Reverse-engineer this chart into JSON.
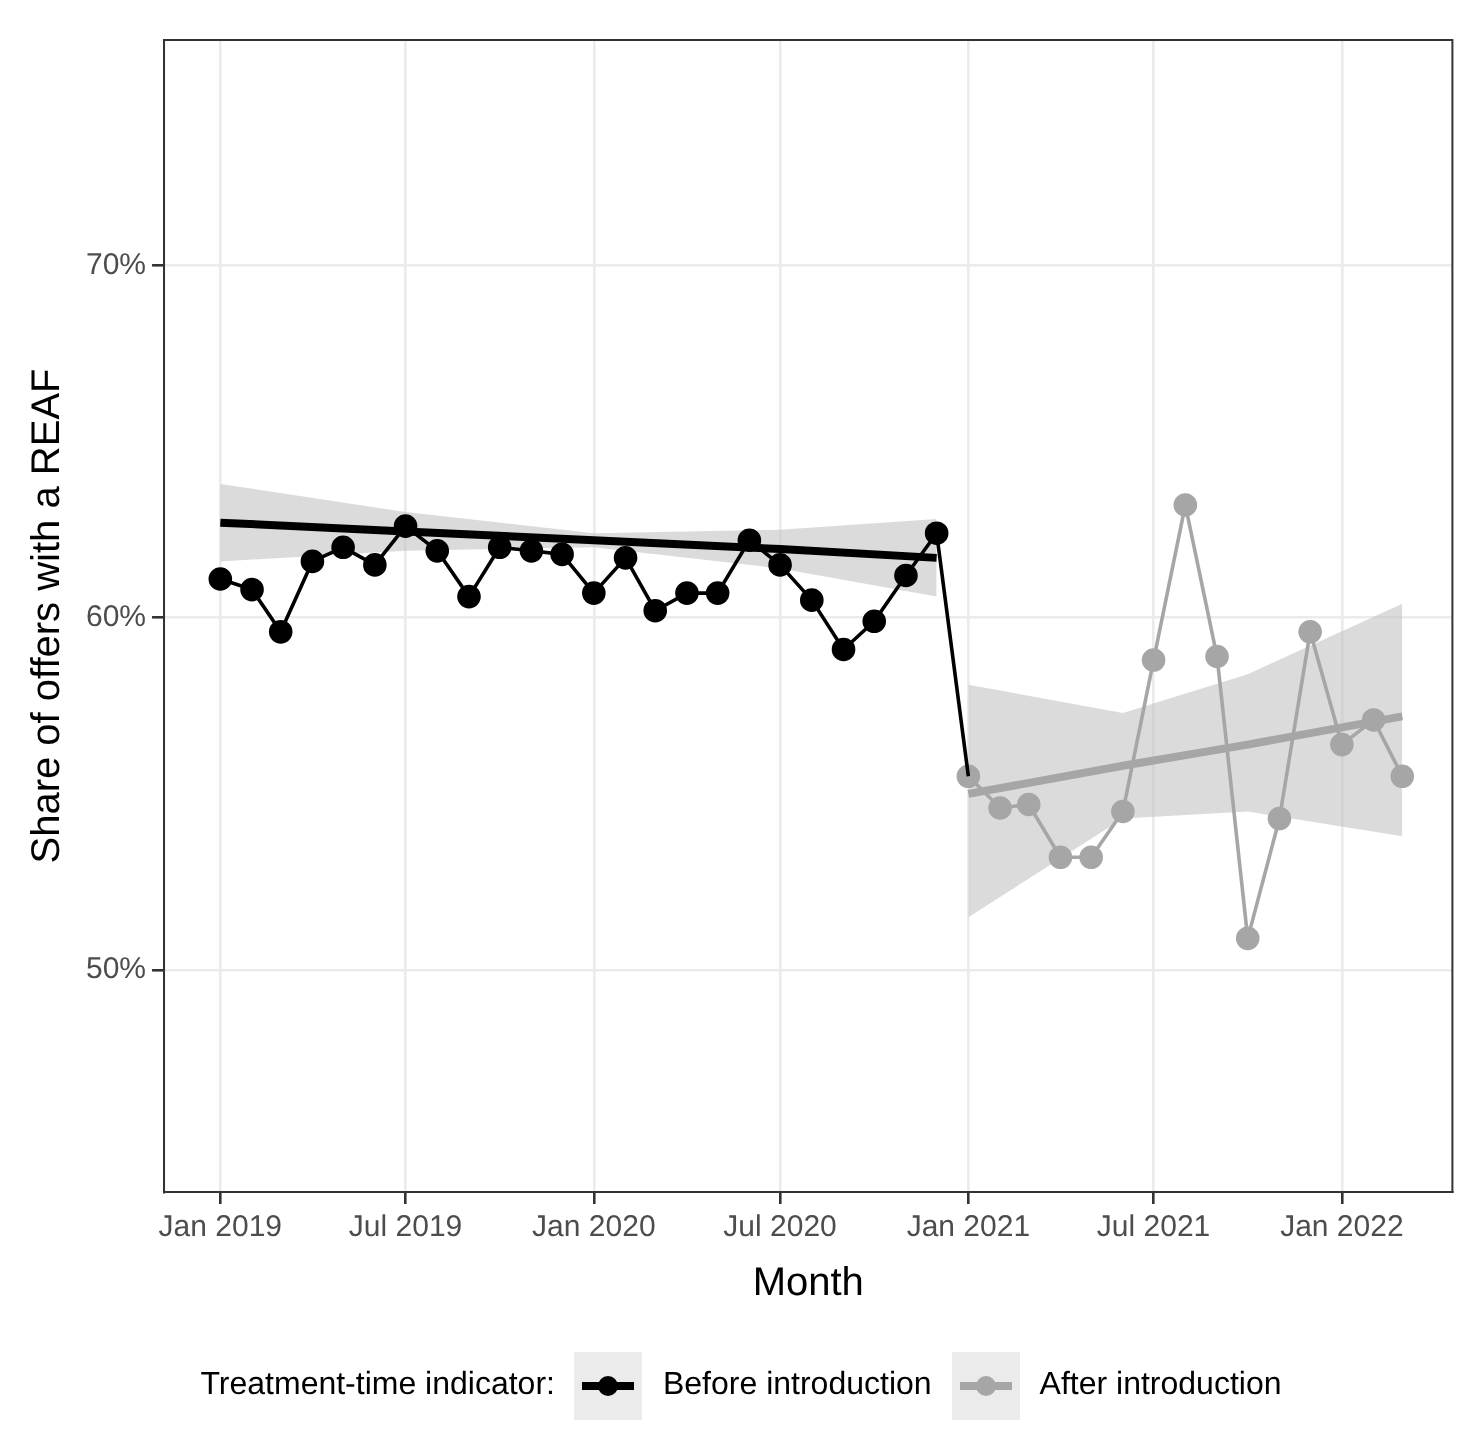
{
  "chart_data": {
    "type": "line",
    "xlabel": "Month",
    "ylabel": "Share of offers with a REAF",
    "legend_title": "Treatment-time indicator:",
    "legend": "bottom",
    "grid": true,
    "xlim": [
      "2018-11-07",
      "2022-04-19"
    ],
    "xticks": [
      {
        "value": "2019-01",
        "label": "Jan 2019"
      },
      {
        "value": "2019-07",
        "label": "Jul 2019"
      },
      {
        "value": "2020-01",
        "label": "Jan 2020"
      },
      {
        "value": "2020-07",
        "label": "Jul 2020"
      },
      {
        "value": "2021-01",
        "label": "Jan 2021"
      },
      {
        "value": "2021-07",
        "label": "Jul 2021"
      },
      {
        "value": "2022-01",
        "label": "Jan 2022"
      }
    ],
    "ylim": [
      43.7,
      76.4
    ],
    "yticks": [
      {
        "value": 50,
        "label": "50%"
      },
      {
        "value": 60,
        "label": "60%"
      },
      {
        "value": 70,
        "label": "70%"
      }
    ],
    "series": [
      {
        "name": "Before introduction",
        "color": "#000000",
        "marker": "circle",
        "x": [
          "2019-01",
          "2019-02",
          "2019-03",
          "2019-04",
          "2019-05",
          "2019-06",
          "2019-07",
          "2019-08",
          "2019-09",
          "2019-10",
          "2019-11",
          "2019-12",
          "2020-01",
          "2020-02",
          "2020-03",
          "2020-04",
          "2020-05",
          "2020-06",
          "2020-07",
          "2020-08",
          "2020-09",
          "2020-10",
          "2020-11",
          "2020-12",
          "2021-01"
        ],
        "values": [
          61.1,
          60.8,
          59.6,
          61.6,
          62.0,
          61.5,
          62.6,
          61.9,
          60.6,
          62.0,
          61.9,
          61.8,
          60.7,
          61.7,
          60.2,
          60.7,
          60.7,
          62.2,
          61.5,
          60.5,
          59.1,
          59.9,
          61.2,
          62.4,
          55.5
        ]
      },
      {
        "name": "After introduction",
        "color": "#a6a6a6",
        "marker": "circle",
        "x": [
          "2021-01",
          "2021-02",
          "2021-03",
          "2021-04",
          "2021-05",
          "2021-06",
          "2021-07",
          "2021-08",
          "2021-09",
          "2021-10",
          "2021-11",
          "2021-12",
          "2022-01",
          "2022-02",
          "2022-03"
        ],
        "values": [
          55.5,
          54.6,
          54.7,
          53.2,
          53.2,
          54.5,
          58.8,
          63.2,
          58.9,
          50.9,
          54.3,
          59.6,
          56.4,
          57.1,
          55.5
        ]
      },
      {
        "type": "line",
        "color": "#000000",
        "marker": "none",
        "x": [
          "2019-01",
          "2019-07",
          "2020-01",
          "2020-07",
          "2020-12"
        ],
        "values": [
          62.7,
          62.45,
          62.2,
          61.95,
          61.7
        ],
        "lower": [
          61.6,
          61.9,
          62.0,
          61.4,
          60.6
        ],
        "upper": [
          63.8,
          63.0,
          62.4,
          62.5,
          62.8
        ]
      },
      {
        "type": "line",
        "color": "#a6a6a6",
        "marker": "none",
        "x": [
          "2021-01",
          "2021-06",
          "2021-10",
          "2022-03"
        ],
        "values": [
          55.0,
          55.8,
          56.4,
          57.2
        ],
        "lower": [
          51.5,
          54.3,
          54.5,
          53.8
        ],
        "upper": [
          58.1,
          57.3,
          58.4,
          60.4
        ]
      }
    ]
  }
}
